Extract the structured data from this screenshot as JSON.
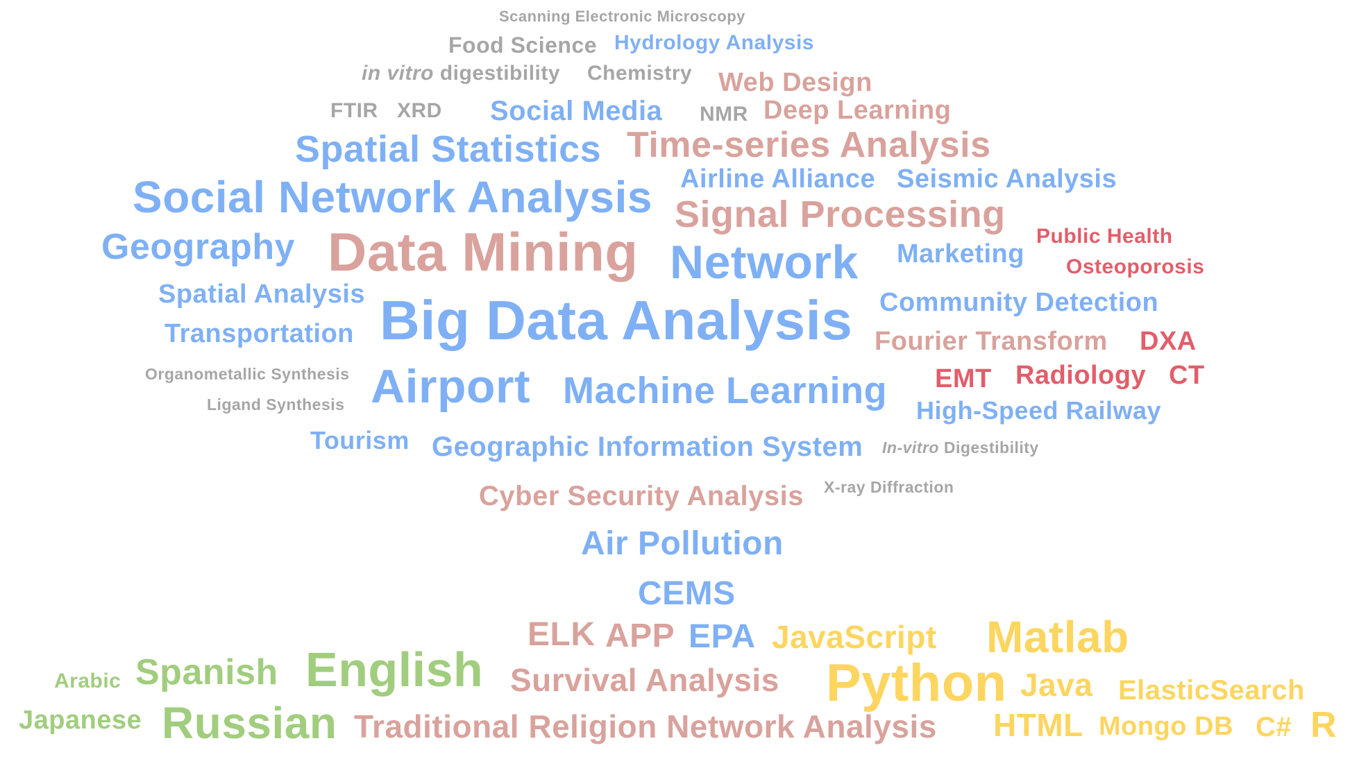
{
  "colors": {
    "gray": "#a6a6a6",
    "blue": "#7fb0f5",
    "salmon": "#d9a29c",
    "red": "#e35d6a",
    "green": "#a1cd7e",
    "gold": "#fdd55f"
  },
  "words": {
    "scanning_electronic_microscopy": "Scanning Electronic Microscopy",
    "food_science": "Food Science",
    "hydrology_analysis": "Hydrology Analysis",
    "in_vitro_italic": "in vitro",
    "digestibility": "digestibility",
    "chemistry": "Chemistry",
    "web_design": "Web Design",
    "ftir": "FTIR",
    "xrd": "XRD",
    "social_media": "Social Media",
    "nmr": "NMR",
    "deep_learning": "Deep Learning",
    "spatial_statistics": "Spatial Statistics",
    "time_series_analysis": "Time-series Analysis",
    "airline_alliance": "Airline Alliance",
    "seismic_analysis": "Seismic Analysis",
    "social_network_analysis": "Social Network Analysis",
    "signal_processing": "Signal Processing",
    "geography": "Geography",
    "data_mining": "Data Mining",
    "network": "Network",
    "marketing": "Marketing",
    "public_health": "Public Health",
    "osteoporosis": "Osteoporosis",
    "spatial_analysis": "Spatial Analysis",
    "big_data_analysis": "Big Data Analysis",
    "community_detection": "Community Detection",
    "transportation": "Transportation",
    "fourier_transform": "Fourier Transform",
    "dxa": "DXA",
    "organometallic_synthesis": "Organometallic Synthesis",
    "airport": "Airport",
    "machine_learning": "Machine Learning",
    "emt": "EMT",
    "radiology": "Radiology",
    "ct": "CT",
    "ligand_synthesis": "Ligand Synthesis",
    "high_speed_railway": "High-Speed Railway",
    "tourism": "Tourism",
    "geographic_information_system": "Geographic Information System",
    "in_vitro_cap_italic": "In-vitro",
    "digestibility_cap": "Digestibility",
    "cyber_security_analysis": "Cyber Security Analysis",
    "xray_diffraction": "X-ray Diffraction",
    "air_pollution": "Air Pollution",
    "cems": "CEMS",
    "elk": "ELK",
    "app": "APP",
    "epa": "EPA",
    "javascript": "JavaScript",
    "matlab": "Matlab",
    "arabic": "Arabic",
    "spanish": "Spanish",
    "english": "English",
    "survival_analysis": "Survival Analysis",
    "python": "Python",
    "java": "Java",
    "elasticsearch": "ElasticSearch",
    "japanese": "Japanese",
    "russian": "Russian",
    "traditional_religion_network_analysis": "Traditional Religion Network Analysis",
    "html": "HTML",
    "mongo_db": "Mongo DB",
    "csharp": "C#",
    "r": "R"
  }
}
